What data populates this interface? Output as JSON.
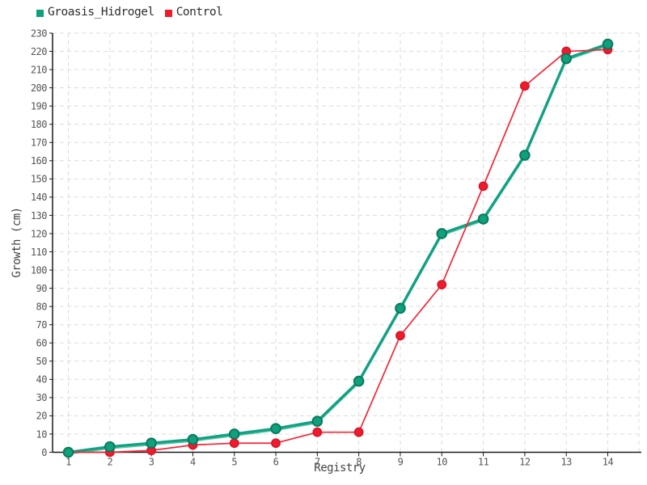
{
  "page": {
    "background": "#ffffff"
  },
  "chart_data": {
    "type": "line",
    "title": "",
    "xlabel": "Registry",
    "ylabel": "Growth (cm)",
    "categories": [
      1,
      2,
      3,
      4,
      5,
      6,
      7,
      8,
      9,
      10,
      11,
      12,
      13,
      14
    ],
    "series": [
      {
        "name": "Groasis_Hidrogel",
        "values": [
          0,
          3,
          5,
          7,
          10,
          13,
          17,
          39,
          79,
          120,
          128,
          163,
          216,
          224
        ],
        "line_color": "#12A183",
        "highlight_color": "#52C6A3",
        "marker_fill": "#0FA07C",
        "marker_stroke": "#0B7A5F",
        "line_width": 3.4,
        "marker_radius": 5.8
      },
      {
        "name": "Control",
        "values": [
          0,
          0,
          1,
          4,
          5,
          5,
          11,
          11,
          64,
          92,
          146,
          201,
          220,
          221
        ],
        "line_color": "#F52536",
        "highlight_color": null,
        "marker_fill": "#ED1B2B",
        "marker_stroke": "#D31426",
        "line_width": 1.7,
        "marker_radius": 5.2
      }
    ],
    "ylim": [
      0,
      230
    ],
    "ytick_step": 10,
    "legend_position": "top-left",
    "grid": {
      "on": true,
      "dashed": true,
      "color": "#DCDCDC"
    },
    "axis_color": "#1A1A1A",
    "tick_label_color": "#555555",
    "axis_label_color": "#444444"
  }
}
